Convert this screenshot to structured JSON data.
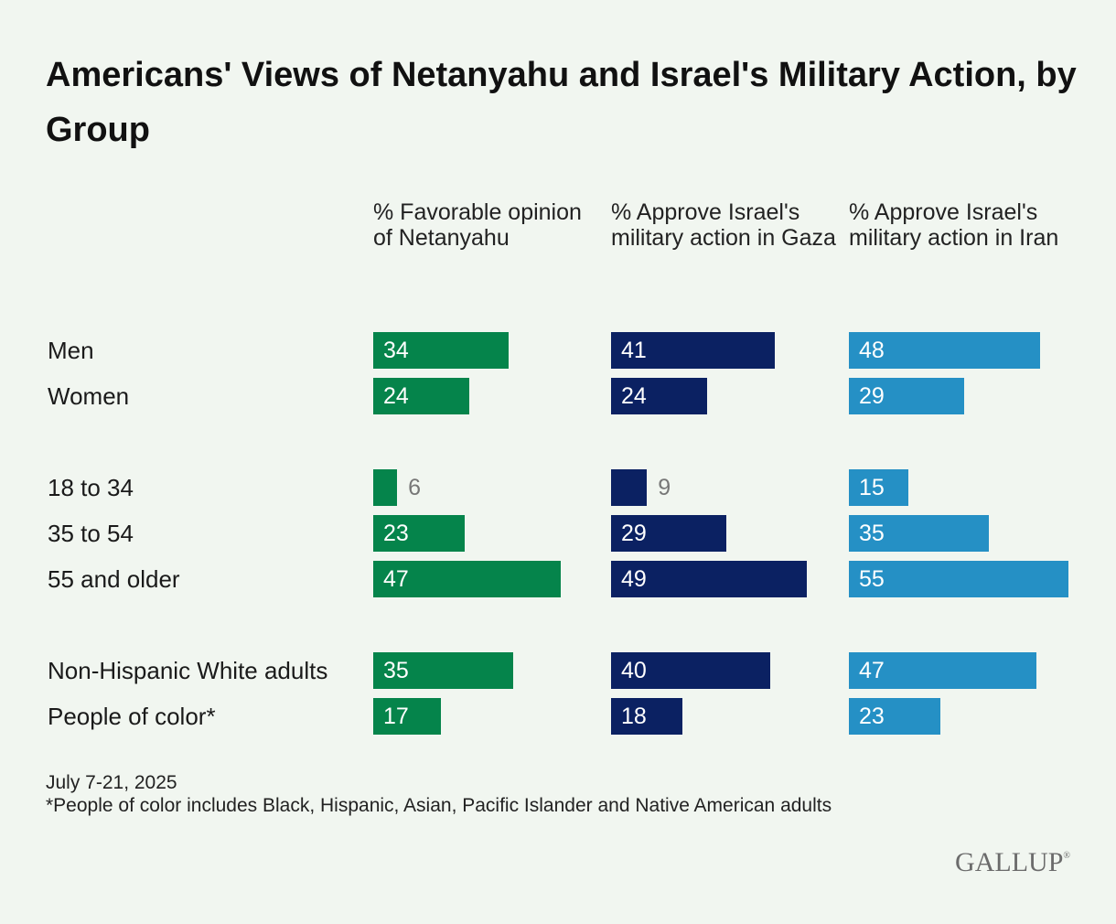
{
  "title": "Americans' Views of Netanyahu and Israel's Military Action, by Group",
  "colors": {
    "favorable": "#05844b",
    "gaza": "#0b2162",
    "iran": "#2590c5",
    "small_label": "#777777"
  },
  "chart_data": {
    "type": "bar",
    "orientation": "horizontal",
    "title": "Americans' Views of Netanyahu and Israel's Military Action, by Group",
    "categories": [
      "Men",
      "Women",
      "18 to 34",
      "35 to 54",
      "55 and older",
      "Non-Hispanic White adults",
      "People of color*"
    ],
    "groups": [
      [
        "Men",
        "Women"
      ],
      [
        "18 to 34",
        "35 to 54",
        "55 and older"
      ],
      [
        "Non-Hispanic White adults",
        "People of color*"
      ]
    ],
    "series": [
      {
        "name": "% Favorable opinion of Netanyahu",
        "values": [
          34,
          24,
          6,
          23,
          47,
          35,
          17
        ]
      },
      {
        "name": "% Approve Israel's military action in Gaza",
        "values": [
          41,
          24,
          9,
          29,
          49,
          40,
          18
        ]
      },
      {
        "name": "% Approve Israel's military action in Iran",
        "values": [
          48,
          29,
          15,
          35,
          55,
          47,
          23
        ]
      }
    ],
    "xlim": [
      0,
      55
    ]
  },
  "footnote": {
    "date": "July 7-21, 2025",
    "note": "*People of color includes Black, Hispanic, Asian, Pacific Islander and Native American adults"
  },
  "logo": {
    "text": "GALLUP",
    "mark": "®"
  }
}
